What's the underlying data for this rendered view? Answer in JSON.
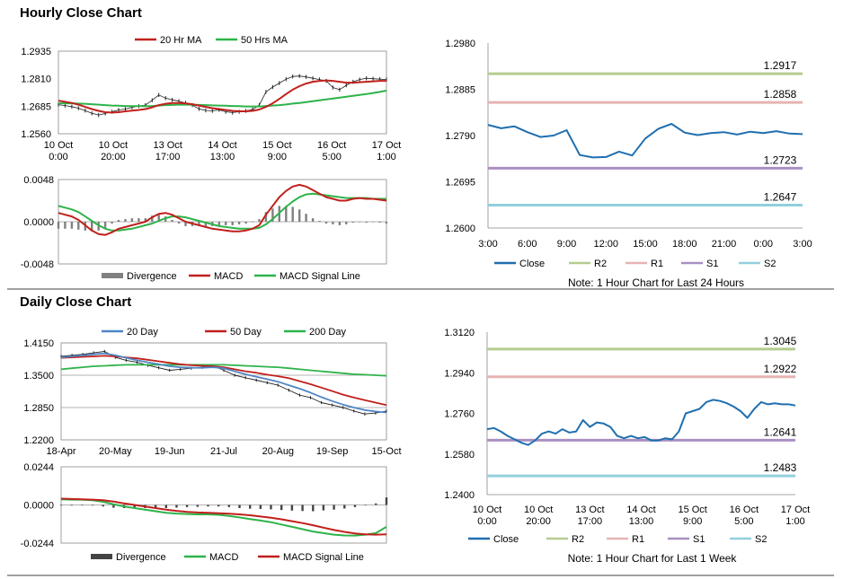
{
  "sections": {
    "hourly_title": "Hourly Close Chart",
    "daily_title": "Daily Close Chart"
  },
  "colors": {
    "close": "#1f6fb0",
    "r2": "#b5cc8e",
    "r1": "#e6b3b3",
    "s1": "#a990c1",
    "s2": "#92cfdc",
    "ma_red": "#c0201c",
    "ma_green": "#2eb34a",
    "ma_blue": "#4f86c6",
    "divergence": "#808080"
  },
  "chart_data": [
    {
      "id": "hourly_price",
      "type": "line",
      "title": "",
      "x_ticks": [
        "10 Oct|0:00",
        "10 Oct|20:00",
        "13 Oct|17:00",
        "14 Oct|13:00",
        "15 Oct|9:00",
        "16 Oct|5:00",
        "17 Oct|1:00"
      ],
      "ylim": [
        1.256,
        1.2935
      ],
      "y_ticks": [
        "1.2935",
        "1.2810",
        "1.2685",
        "1.2560"
      ],
      "legend": [
        "20 Hr MA",
        "50 Hrs MA"
      ],
      "series": [
        {
          "name": "Close",
          "values": [
            1.2692,
            1.2688,
            1.2683,
            1.2676,
            1.2665,
            1.2653,
            1.2645,
            1.2652,
            1.266,
            1.2668,
            1.2672,
            1.268,
            1.2686,
            1.269,
            1.2712,
            1.2736,
            1.2722,
            1.2714,
            1.2708,
            1.27,
            1.269,
            1.2673,
            1.2666,
            1.2664,
            1.2668,
            1.266,
            1.2656,
            1.266,
            1.2664,
            1.267,
            1.269,
            1.275,
            1.2772,
            1.279,
            1.2808,
            1.282,
            1.2822,
            1.2818,
            1.2812,
            1.2806,
            1.28,
            1.277,
            1.276,
            1.278,
            1.2796,
            1.2806,
            1.2812,
            1.281,
            1.2808,
            1.2806
          ]
        },
        {
          "name": "20 Hr MA",
          "values": [
            1.271,
            1.2705,
            1.27,
            1.2692,
            1.2682,
            1.2672,
            1.2664,
            1.2658,
            1.2656,
            1.2658,
            1.2662,
            1.2665,
            1.2668,
            1.2672,
            1.268,
            1.269,
            1.2696,
            1.27,
            1.27,
            1.2698,
            1.2694,
            1.2688,
            1.2682,
            1.2676,
            1.2672,
            1.2668,
            1.2664,
            1.2662,
            1.2662,
            1.2664,
            1.267,
            1.2682,
            1.2698,
            1.2718,
            1.274,
            1.276,
            1.2776,
            1.2788,
            1.2796,
            1.28,
            1.2802,
            1.28,
            1.2796,
            1.2792,
            1.2792,
            1.2794,
            1.2796,
            1.2798,
            1.28,
            1.28
          ]
        },
        {
          "name": "50 Hrs MA",
          "values": [
            1.2698,
            1.2698,
            1.2698,
            1.2697,
            1.2696,
            1.2694,
            1.2692,
            1.269,
            1.2688,
            1.2687,
            1.2686,
            1.2685,
            1.2685,
            1.2685,
            1.2686,
            1.2688,
            1.269,
            1.2691,
            1.2692,
            1.2692,
            1.2692,
            1.2691,
            1.269,
            1.2689,
            1.2688,
            1.2687,
            1.2686,
            1.2685,
            1.2684,
            1.2684,
            1.2684,
            1.2686,
            1.2688,
            1.269,
            1.2693,
            1.2697,
            1.27,
            1.2704,
            1.2708,
            1.2712,
            1.2716,
            1.272,
            1.2724,
            1.2728,
            1.2732,
            1.2736,
            1.274,
            1.2745,
            1.275,
            1.2756
          ]
        }
      ]
    },
    {
      "id": "hourly_macd",
      "type": "line",
      "ylim": [
        -0.0048,
        0.0048
      ],
      "y_ticks": [
        "0.0048",
        "0.0000",
        "-0.0048"
      ],
      "legend": [
        "Divergence",
        "MACD",
        "MACD Signal Line"
      ],
      "series": [
        {
          "name": "MACD",
          "values": [
            0.001,
            0.0008,
            0.0006,
            0.0002,
            -0.0004,
            -0.001,
            -0.0014,
            -0.0015,
            -0.0012,
            -0.0008,
            -0.0006,
            -0.0004,
            -0.0002,
            0.0,
            0.0005,
            0.0009,
            0.001,
            0.0008,
            0.0004,
            0.0,
            -0.0002,
            -0.0004,
            -0.0006,
            -0.0008,
            -0.0009,
            -0.001,
            -0.0011,
            -0.0011,
            -0.001,
            -0.0008,
            -0.0004,
            0.0008,
            0.0018,
            0.0028,
            0.0035,
            0.004,
            0.0042,
            0.004,
            0.0036,
            0.0032,
            0.0028,
            0.0026,
            0.0024,
            0.0024,
            0.0026,
            0.0027,
            0.0026,
            0.0026,
            0.0025,
            0.0024
          ]
        },
        {
          "name": "MACD Signal Line",
          "values": [
            0.0018,
            0.0016,
            0.0014,
            0.0011,
            0.0006,
            0.0001,
            -0.0004,
            -0.0008,
            -0.001,
            -0.001,
            -0.0009,
            -0.0008,
            -0.0006,
            -0.0004,
            -0.0002,
            0.0001,
            0.0004,
            0.0006,
            0.0006,
            0.0005,
            0.0003,
            0.0001,
            -0.0001,
            -0.0003,
            -0.0005,
            -0.0006,
            -0.0007,
            -0.0008,
            -0.0008,
            -0.0008,
            -0.0007,
            -0.0003,
            0.0003,
            0.001,
            0.0017,
            0.0023,
            0.0028,
            0.0031,
            0.0032,
            0.0031,
            0.003,
            0.0029,
            0.0028,
            0.0027,
            0.0027,
            0.0027,
            0.0027,
            0.0026,
            0.0026,
            0.0026
          ]
        },
        {
          "name": "Divergence",
          "values": [
            -0.0008,
            -0.0008,
            -0.0008,
            -0.0009,
            -0.001,
            -0.0011,
            -0.001,
            -0.0007,
            -0.0002,
            0.0002,
            0.0003,
            0.0004,
            0.0004,
            0.0004,
            0.0007,
            0.0008,
            0.0006,
            0.0002,
            -0.0002,
            -0.0005,
            -0.0005,
            -0.0005,
            -0.0005,
            -0.0005,
            -0.0004,
            -0.0004,
            -0.0004,
            -0.0003,
            -0.0002,
            0.0,
            0.0003,
            0.0011,
            0.0015,
            0.0018,
            0.0018,
            0.0017,
            0.0014,
            0.0009,
            0.0004,
            0.0001,
            -0.0002,
            -0.0003,
            -0.0004,
            -0.0003,
            -0.0001,
            0.0,
            -0.0001,
            0.0,
            -0.0001,
            -0.0002
          ]
        }
      ]
    },
    {
      "id": "hourly_levels",
      "type": "line",
      "note": "Note: 1 Hour Chart for Last 24 Hours",
      "x_ticks": [
        "3:00",
        "6:00",
        "9:00",
        "12:00",
        "15:00",
        "18:00",
        "21:00",
        "0:00",
        "3:00"
      ],
      "ylim": [
        1.26,
        1.298
      ],
      "y_ticks": [
        "1.2980",
        "1.2885",
        "1.2790",
        "1.2695",
        "1.2600"
      ],
      "legend": [
        "Close",
        "R2",
        "R1",
        "S1",
        "S2"
      ],
      "levels": [
        {
          "name": "R2",
          "value": 1.2917,
          "label": "1.2917"
        },
        {
          "name": "R1",
          "value": 1.2858,
          "label": "1.2858"
        },
        {
          "name": "S1",
          "value": 1.2723,
          "label": "1.2723"
        },
        {
          "name": "S2",
          "value": 1.2647,
          "label": "1.2647"
        }
      ],
      "series": [
        {
          "name": "Close",
          "x": [
            0,
            1,
            2,
            3,
            4,
            5,
            6,
            7,
            8,
            9,
            10,
            11,
            12,
            13,
            14,
            15,
            16,
            17,
            18,
            19,
            20,
            21,
            22,
            23,
            24
          ],
          "values": [
            1.2812,
            1.2805,
            1.2809,
            1.2797,
            1.2787,
            1.279,
            1.2801,
            1.275,
            1.2745,
            1.2746,
            1.2757,
            1.2749,
            1.2784,
            1.2804,
            1.2814,
            1.2796,
            1.2791,
            1.2795,
            1.2797,
            1.2792,
            1.2798,
            1.2795,
            1.2799,
            1.2794,
            1.2793
          ]
        }
      ]
    },
    {
      "id": "daily_price",
      "type": "line",
      "x_ticks": [
        "18-Apr",
        "20-May",
        "19-Jun",
        "21-Jul",
        "20-Aug",
        "19-Sep",
        "15-Oct"
      ],
      "ylim": [
        1.22,
        1.415
      ],
      "y_ticks": [
        "1.4150",
        "1.3500",
        "1.2850",
        "1.2200"
      ],
      "legend": [
        "20 Day",
        "50 Day",
        "200 Day"
      ],
      "series": [
        {
          "name": "Close",
          "values": [
            1.388,
            1.39,
            1.392,
            1.395,
            1.398,
            1.386,
            1.38,
            1.376,
            1.37,
            1.365,
            1.36,
            1.362,
            1.364,
            1.366,
            1.369,
            1.36,
            1.35,
            1.345,
            1.34,
            1.335,
            1.33,
            1.32,
            1.31,
            1.305,
            1.295,
            1.29,
            1.285,
            1.278,
            1.272,
            1.274,
            1.278
          ]
        },
        {
          "name": "20 Day",
          "values": [
            1.386,
            1.388,
            1.39,
            1.392,
            1.394,
            1.39,
            1.385,
            1.38,
            1.376,
            1.372,
            1.368,
            1.366,
            1.365,
            1.365,
            1.366,
            1.364,
            1.358,
            1.352,
            1.347,
            1.342,
            1.337,
            1.33,
            1.323,
            1.315,
            1.306,
            1.298,
            1.291,
            1.285,
            1.28,
            1.277,
            1.275
          ]
        },
        {
          "name": "50 Day",
          "values": [
            1.385,
            1.386,
            1.387,
            1.388,
            1.389,
            1.388,
            1.386,
            1.384,
            1.381,
            1.378,
            1.375,
            1.372,
            1.37,
            1.369,
            1.368,
            1.366,
            1.362,
            1.358,
            1.355,
            1.351,
            1.348,
            1.344,
            1.338,
            1.332,
            1.325,
            1.318,
            1.311,
            1.305,
            1.3,
            1.295,
            1.29
          ]
        },
        {
          "name": "200 Day",
          "values": [
            1.362,
            1.364,
            1.366,
            1.368,
            1.369,
            1.37,
            1.371,
            1.371,
            1.371,
            1.371,
            1.371,
            1.371,
            1.371,
            1.371,
            1.371,
            1.371,
            1.37,
            1.369,
            1.368,
            1.367,
            1.366,
            1.364,
            1.362,
            1.36,
            1.358,
            1.356,
            1.354,
            1.352,
            1.351,
            1.35,
            1.349
          ]
        }
      ]
    },
    {
      "id": "daily_macd",
      "type": "line",
      "ylim": [
        -0.0244,
        0.0244
      ],
      "y_ticks": [
        "0.0244",
        "0.0000",
        "-0.0244"
      ],
      "legend": [
        "Divergence",
        "MACD",
        "MACD Signal Line"
      ],
      "series": [
        {
          "name": "MACD",
          "values": [
            0.0036,
            0.0034,
            0.0034,
            0.003,
            0.002,
            0.0004,
            -0.001,
            -0.002,
            -0.003,
            -0.004,
            -0.005,
            -0.0055,
            -0.0058,
            -0.006,
            -0.006,
            -0.0063,
            -0.007,
            -0.008,
            -0.009,
            -0.01,
            -0.011,
            -0.0125,
            -0.014,
            -0.0155,
            -0.017,
            -0.018,
            -0.019,
            -0.0195,
            -0.0196,
            -0.019,
            -0.018,
            -0.014
          ]
        },
        {
          "name": "MACD Signal Line",
          "values": [
            0.004,
            0.0038,
            0.0036,
            0.0034,
            0.003,
            0.0022,
            0.001,
            0.0,
            -0.001,
            -0.002,
            -0.003,
            -0.0038,
            -0.0044,
            -0.0048,
            -0.005,
            -0.0053,
            -0.0056,
            -0.006,
            -0.0066,
            -0.0074,
            -0.0082,
            -0.0092,
            -0.0104,
            -0.0116,
            -0.013,
            -0.0145,
            -0.016,
            -0.0172,
            -0.0182,
            -0.0188,
            -0.019,
            -0.0188
          ]
        },
        {
          "name": "Divergence",
          "values": [
            -0.0004,
            -0.0004,
            -0.0002,
            -0.0004,
            -0.001,
            -0.0018,
            -0.002,
            -0.002,
            -0.002,
            -0.002,
            -0.002,
            -0.0017,
            -0.0014,
            -0.0012,
            -0.001,
            -0.001,
            -0.0014,
            -0.002,
            -0.0024,
            -0.0026,
            -0.0028,
            -0.0033,
            -0.0036,
            -0.0039,
            -0.004,
            -0.0035,
            -0.003,
            -0.0023,
            -0.0014,
            -0.0002,
            0.001,
            0.0048
          ]
        }
      ]
    },
    {
      "id": "weekly_levels",
      "type": "line",
      "note": "Note: 1 Hour Chart for Last 1 Week",
      "x_ticks": [
        "10 Oct|0:00",
        "10 Oct|20:00",
        "13 Oct|17:00",
        "14 Oct|13:00",
        "15 Oct|9:00",
        "16 Oct|5:00",
        "17 Oct|1:00"
      ],
      "ylim": [
        1.24,
        1.312
      ],
      "y_ticks": [
        "1.3120",
        "1.2940",
        "1.2760",
        "1.2580",
        "1.2400"
      ],
      "legend": [
        "Close",
        "R2",
        "R1",
        "S1",
        "S2"
      ],
      "levels": [
        {
          "name": "R2",
          "value": 1.3045,
          "label": "1.3045"
        },
        {
          "name": "R1",
          "value": 1.2922,
          "label": "1.2922"
        },
        {
          "name": "S1",
          "value": 1.2641,
          "label": "1.2641"
        },
        {
          "name": "S2",
          "value": 1.2483,
          "label": "1.2483"
        }
      ],
      "series": [
        {
          "name": "Close",
          "values": [
            1.269,
            1.2695,
            1.268,
            1.266,
            1.2645,
            1.263,
            1.262,
            1.264,
            1.267,
            1.268,
            1.267,
            1.269,
            1.2675,
            1.268,
            1.273,
            1.27,
            1.272,
            1.2715,
            1.27,
            1.266,
            1.265,
            1.266,
            1.265,
            1.2655,
            1.264,
            1.264,
            1.265,
            1.2645,
            1.268,
            1.276,
            1.277,
            1.278,
            1.281,
            1.282,
            1.2815,
            1.2805,
            1.279,
            1.277,
            1.274,
            1.278,
            1.281,
            1.28,
            1.2805,
            1.28,
            1.28,
            1.2795
          ]
        }
      ]
    }
  ]
}
